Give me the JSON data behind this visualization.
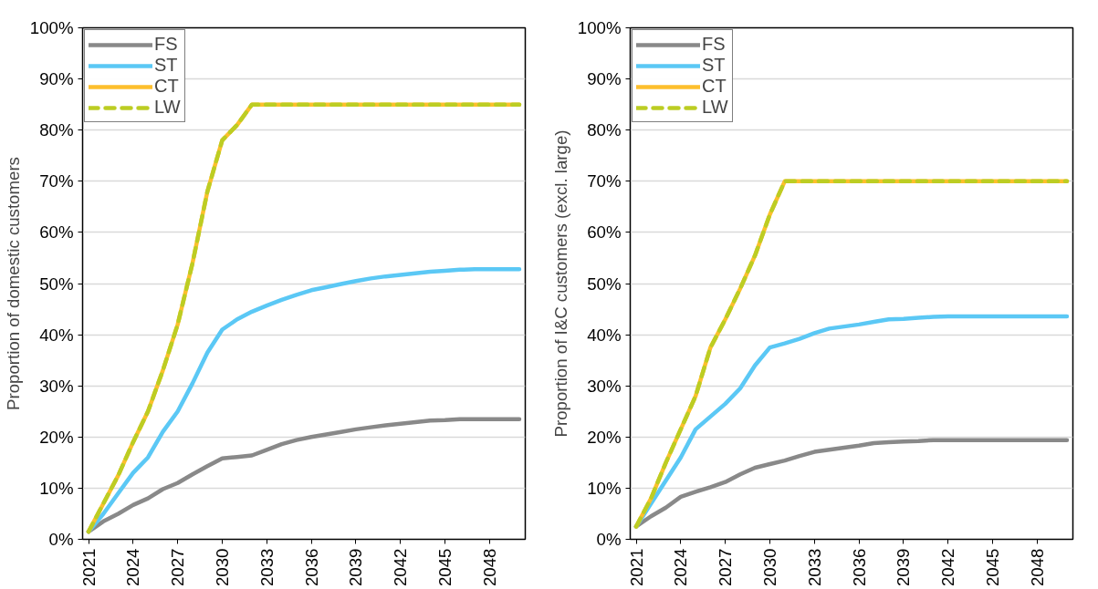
{
  "chart_data": [
    {
      "type": "line",
      "ylabel": "Proportion of domestic customers",
      "x": [
        2021,
        2022,
        2023,
        2024,
        2025,
        2026,
        2027,
        2028,
        2029,
        2030,
        2031,
        2032,
        2033,
        2034,
        2035,
        2036,
        2037,
        2038,
        2039,
        2040,
        2041,
        2042,
        2043,
        2044,
        2045,
        2046,
        2047,
        2048,
        2049,
        2050
      ],
      "xlim": [
        2020.6,
        2050.4
      ],
      "xticks": [
        2021,
        2024,
        2027,
        2030,
        2033,
        2036,
        2039,
        2042,
        2045,
        2048
      ],
      "ylim": [
        0,
        100
      ],
      "yticks": [
        {
          "value": 0,
          "label": "0%"
        },
        {
          "value": 10,
          "label": "10%"
        },
        {
          "value": 20,
          "label": "20%"
        },
        {
          "value": 30,
          "label": "30%"
        },
        {
          "value": 40,
          "label": "40%"
        },
        {
          "value": 50,
          "label": "50%"
        },
        {
          "value": 60,
          "label": "60%"
        },
        {
          "value": 70,
          "label": "70%"
        },
        {
          "value": 80,
          "label": "80%"
        },
        {
          "value": 90,
          "label": "90%"
        },
        {
          "value": 100,
          "label": "100%"
        }
      ],
      "grid": "y",
      "legend": "top left",
      "marker": "none",
      "series": [
        {
          "name": "FS",
          "color": "#898989",
          "values": [
            1.5,
            3.5,
            5,
            6.7,
            8,
            9.8,
            11,
            12.7,
            14.3,
            15.8,
            16.1,
            16.4,
            17.5,
            18.6,
            19.4,
            20,
            20.5,
            21,
            21.5,
            21.9,
            22.3,
            22.6,
            22.9,
            23.2,
            23.3,
            23.5,
            23.5,
            23.5,
            23.5,
            23.5
          ]
        },
        {
          "name": "ST",
          "color": "#5bc8f5",
          "values": [
            1.5,
            5,
            9,
            13,
            16,
            21,
            25,
            30.5,
            36.5,
            41,
            43,
            44.5,
            45.7,
            46.8,
            47.8,
            48.7,
            49.3,
            49.9,
            50.5,
            51,
            51.4,
            51.7,
            52,
            52.3,
            52.5,
            52.7,
            52.8,
            52.8,
            52.8,
            52.8
          ]
        },
        {
          "name": "CT",
          "color": "#fdbf2d",
          "line_style": "solid",
          "values": [
            1.5,
            7,
            12.5,
            19,
            25,
            33,
            42,
            54,
            68,
            78,
            81,
            85,
            85,
            85,
            85,
            85,
            85,
            85,
            85,
            85,
            85,
            85,
            85,
            85,
            85,
            85,
            85,
            85,
            85,
            85
          ]
        },
        {
          "name": "LW",
          "color": "#bccd23",
          "line_style": "dashed",
          "values": [
            1.5,
            7,
            12.5,
            19,
            25,
            33,
            42,
            54,
            68,
            78,
            81,
            85,
            85,
            85,
            85,
            85,
            85,
            85,
            85,
            85,
            85,
            85,
            85,
            85,
            85,
            85,
            85,
            85,
            85,
            85
          ]
        }
      ]
    },
    {
      "type": "line",
      "ylabel": "Proportion of I&C customers (excl. large)",
      "x": [
        2021,
        2022,
        2023,
        2024,
        2025,
        2026,
        2027,
        2028,
        2029,
        2030,
        2031,
        2032,
        2033,
        2034,
        2035,
        2036,
        2037,
        2038,
        2039,
        2040,
        2041,
        2042,
        2043,
        2044,
        2045,
        2046,
        2047,
        2048,
        2049,
        2050
      ],
      "xlim": [
        2020.6,
        2050.4
      ],
      "xticks": [
        2021,
        2024,
        2027,
        2030,
        2033,
        2036,
        2039,
        2042,
        2045,
        2048
      ],
      "ylim": [
        0,
        100
      ],
      "yticks": [
        {
          "value": 0,
          "label": "0%"
        },
        {
          "value": 10,
          "label": "10%"
        },
        {
          "value": 20,
          "label": "20%"
        },
        {
          "value": 30,
          "label": "30%"
        },
        {
          "value": 40,
          "label": "40%"
        },
        {
          "value": 50,
          "label": "50%"
        },
        {
          "value": 60,
          "label": "60%"
        },
        {
          "value": 70,
          "label": "70%"
        },
        {
          "value": 80,
          "label": "80%"
        },
        {
          "value": 90,
          "label": "90%"
        },
        {
          "value": 100,
          "label": "100%"
        }
      ],
      "grid": "y",
      "legend": "top left",
      "marker": "none",
      "series": [
        {
          "name": "FS",
          "color": "#898989",
          "values": [
            2.5,
            4.5,
            6.2,
            8.3,
            9.3,
            10.2,
            11.2,
            12.7,
            14,
            14.7,
            15.4,
            16.3,
            17.1,
            17.5,
            17.9,
            18.3,
            18.8,
            19,
            19.1,
            19.2,
            19.4,
            19.4,
            19.4,
            19.4,
            19.4,
            19.4,
            19.4,
            19.4,
            19.4,
            19.4
          ]
        },
        {
          "name": "ST",
          "color": "#5bc8f5",
          "values": [
            2.5,
            7,
            11.5,
            16,
            21.5,
            24,
            26.5,
            29.5,
            34,
            37.5,
            38.3,
            39.2,
            40.3,
            41.2,
            41.6,
            42,
            42.5,
            43,
            43.1,
            43.3,
            43.5,
            43.6,
            43.6,
            43.6,
            43.6,
            43.6,
            43.6,
            43.6,
            43.6,
            43.6
          ]
        },
        {
          "name": "CT",
          "color": "#fdbf2d",
          "line_style": "solid",
          "values": [
            2.5,
            8,
            15,
            21.5,
            28,
            37.5,
            43,
            49,
            55.5,
            63.5,
            70,
            70,
            70,
            70,
            70,
            70,
            70,
            70,
            70,
            70,
            70,
            70,
            70,
            70,
            70,
            70,
            70,
            70,
            70,
            70
          ]
        },
        {
          "name": "LW",
          "color": "#bccd23",
          "line_style": "dashed",
          "values": [
            2.5,
            8,
            15,
            21.5,
            28,
            37.5,
            43,
            49,
            55.5,
            63.5,
            70,
            70,
            70,
            70,
            70,
            70,
            70,
            70,
            70,
            70,
            70,
            70,
            70,
            70,
            70,
            70,
            70,
            70,
            70,
            70
          ]
        }
      ]
    }
  ]
}
